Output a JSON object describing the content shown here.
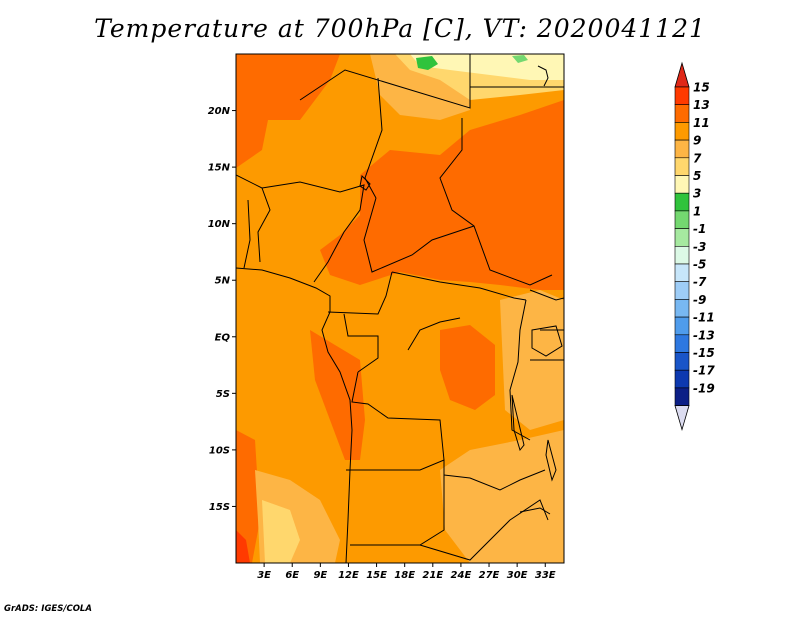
{
  "title": "Temperature at 700hPa [C], VT: 2020041121",
  "credit": "GrADS: IGES/COLA",
  "map": {
    "lon_range": [
      0,
      35
    ],
    "lat_range": [
      -20,
      25
    ],
    "lon_ticks": [
      {
        "value": 3,
        "label": "3E"
      },
      {
        "value": 6,
        "label": "6E"
      },
      {
        "value": 9,
        "label": "9E"
      },
      {
        "value": 12,
        "label": "12E"
      },
      {
        "value": 15,
        "label": "15E"
      },
      {
        "value": 18,
        "label": "18E"
      },
      {
        "value": 21,
        "label": "21E"
      },
      {
        "value": 24,
        "label": "24E"
      },
      {
        "value": 27,
        "label": "27E"
      },
      {
        "value": 30,
        "label": "30E"
      },
      {
        "value": 33,
        "label": "33E"
      }
    ],
    "lat_ticks": [
      {
        "value": 20,
        "label": "20N"
      },
      {
        "value": 15,
        "label": "15N"
      },
      {
        "value": 10,
        "label": "10N"
      },
      {
        "value": 5,
        "label": "5N"
      },
      {
        "value": 0,
        "label": "EQ"
      },
      {
        "value": -5,
        "label": "5S"
      },
      {
        "value": -10,
        "label": "10S"
      },
      {
        "value": -15,
        "label": "15S"
      }
    ],
    "field_colors": {
      "c13": "#ff3a00",
      "c11": "#fe6b00",
      "c9": "#fd9a00",
      "c7": "#fdb545",
      "c5": "#ffd76d",
      "c3": "#fff7b5",
      "c1": "#30c33c",
      "c0": "#74d870"
    }
  },
  "colorbar": {
    "labels": [
      "15",
      "13",
      "11",
      "9",
      "7",
      "5",
      "3",
      "1",
      "-1",
      "-3",
      "-5",
      "-7",
      "-9",
      "-11",
      "-13",
      "-15",
      "-17",
      "-19"
    ],
    "colors": [
      "#ff3a00",
      "#fe6b00",
      "#fd9a00",
      "#fdb545",
      "#ffd76d",
      "#fff7b5",
      "#30c33c",
      "#74d870",
      "#a6e9a0",
      "#dcf9e6",
      "#c7e6fa",
      "#9ecdf7",
      "#78b8f2",
      "#4f9cec",
      "#2e78e0",
      "#1955c8",
      "#0d39b0",
      "#0c1f86"
    ],
    "top_cap_color": "#e02818",
    "bottom_cap_color": "#dcdcf0"
  }
}
